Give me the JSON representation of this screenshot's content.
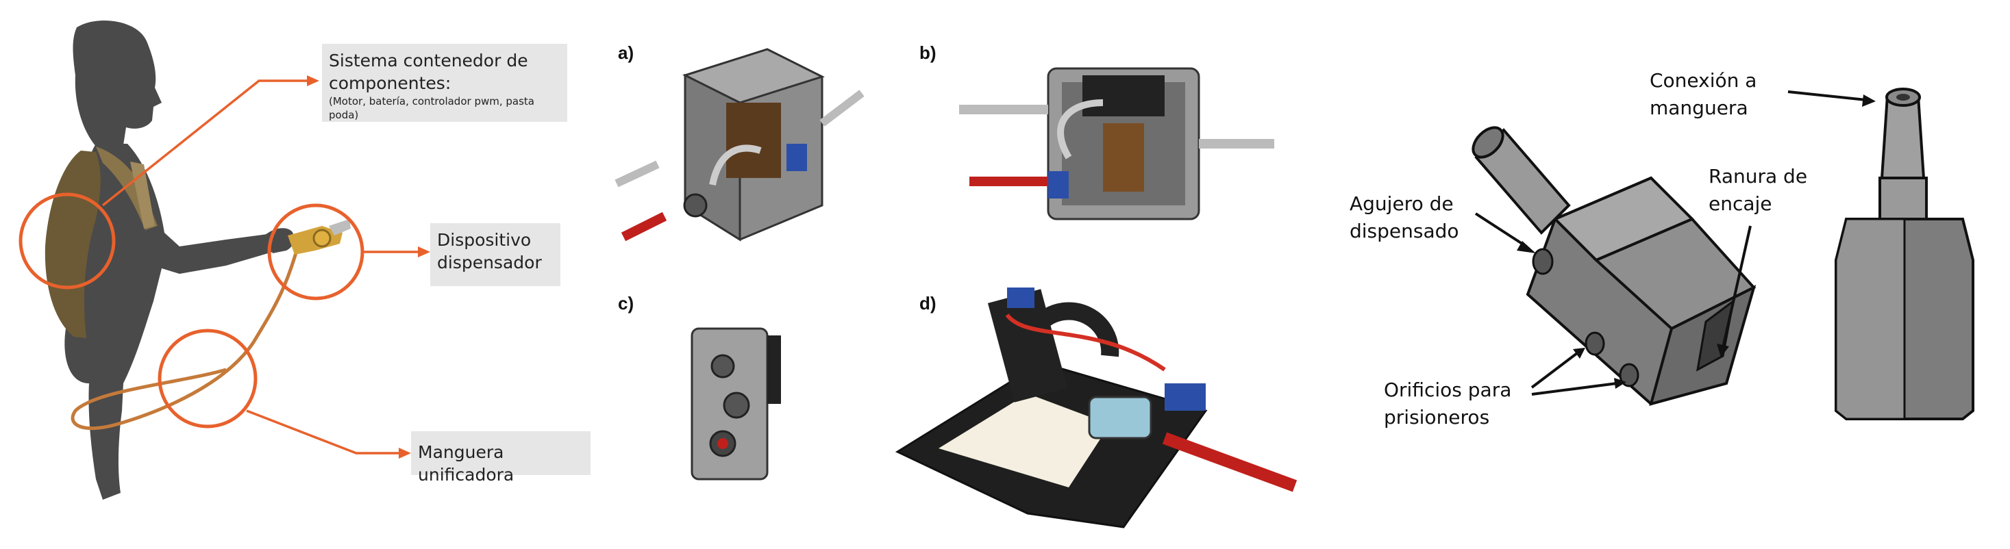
{
  "left_figure": {
    "callouts": [
      {
        "title": "Sistema contenedor de componentes:",
        "subtitle": "(Motor, batería, controlador pwm, pasta poda)"
      },
      {
        "title": "Dispositivo dispensador",
        "subtitle": ""
      },
      {
        "title": "Manguera unificadora",
        "subtitle": ""
      }
    ],
    "accent_color": "#e8612c",
    "silhouette_color": "#4a4a4a"
  },
  "middle_figure": {
    "panel_labels": [
      "a)",
      "b)",
      "c)",
      "d)"
    ]
  },
  "right_figure": {
    "labels": {
      "hose_connection": "Conexión a manguera",
      "dispense_hole": "Agujero de dispensado",
      "fit_slot": "Ranura de encaje",
      "set_screw_holes": "Orificios para prisioneros"
    }
  }
}
